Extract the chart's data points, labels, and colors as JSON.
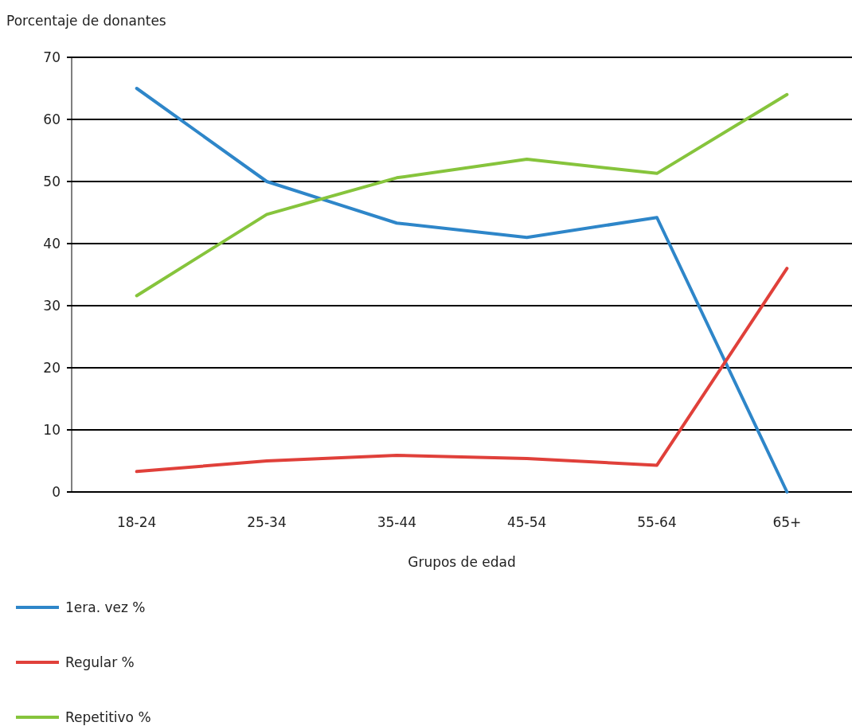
{
  "chart_data": {
    "type": "line",
    "ylabel": "Porcentaje de donantes",
    "xlabel": "Grupos de edad",
    "categories": [
      "18-24",
      "25-34",
      "35-44",
      "45-54",
      "55-64",
      "65+"
    ],
    "series": [
      {
        "name": "1era. vez %",
        "color": "#2e86c9",
        "values": [
          65,
          50,
          43.3,
          41,
          44.2,
          0
        ]
      },
      {
        "name": "Regular %",
        "color": "#e0403a",
        "values": [
          3.3,
          5,
          5.9,
          5.4,
          4.3,
          36
        ]
      },
      {
        "name": "Repetitivo %",
        "color": "#86c43c",
        "values": [
          31.6,
          44.7,
          50.6,
          53.6,
          51.3,
          64
        ]
      }
    ],
    "ylim": [
      0,
      70
    ],
    "yticks": [
      0,
      10,
      20,
      30,
      40,
      50,
      60,
      70
    ],
    "grid": "y",
    "legend": "bottom",
    "marker": "none",
    "line_style": "solid"
  }
}
